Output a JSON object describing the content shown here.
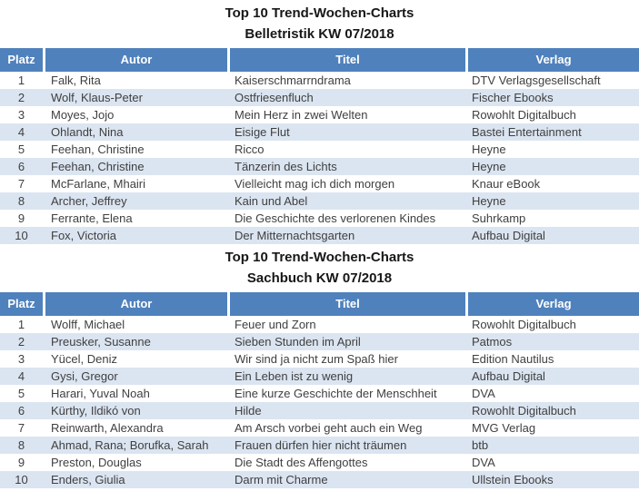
{
  "colors": {
    "header_bg": "#4f81bd",
    "row_alt": "#dbe5f1",
    "header_text": "#ffffff",
    "body_text": "#3f3f3f"
  },
  "tables": [
    {
      "title_line1": "Top 10 Trend-Wochen-Charts",
      "title_line2": "Belletristik KW 07/2018",
      "columns": [
        "Platz",
        "Autor",
        "Titel",
        "Verlag"
      ],
      "rows": [
        {
          "platz": "1",
          "autor": "Falk, Rita",
          "titel": "Kaiserschmarrndrama",
          "verlag": "DTV Verlagsgesellschaft"
        },
        {
          "platz": "2",
          "autor": "Wolf, Klaus-Peter",
          "titel": "Ostfriesenfluch",
          "verlag": "Fischer Ebooks"
        },
        {
          "platz": "3",
          "autor": "Moyes, Jojo",
          "titel": "Mein Herz in zwei Welten",
          "verlag": "Rowohlt Digitalbuch"
        },
        {
          "platz": "4",
          "autor": "Ohlandt, Nina",
          "titel": "Eisige Flut",
          "verlag": "Bastei Entertainment"
        },
        {
          "platz": "5",
          "autor": "Feehan, Christine",
          "titel": "Ricco",
          "verlag": "Heyne"
        },
        {
          "platz": "6",
          "autor": "Feehan, Christine",
          "titel": "Tänzerin des Lichts",
          "verlag": "Heyne"
        },
        {
          "platz": "7",
          "autor": "McFarlane, Mhairi",
          "titel": "Vielleicht mag ich dich morgen",
          "verlag": "Knaur eBook"
        },
        {
          "platz": "8",
          "autor": "Archer, Jeffrey",
          "titel": "Kain und Abel",
          "verlag": "Heyne"
        },
        {
          "platz": "9",
          "autor": "Ferrante, Elena",
          "titel": "Die Geschichte des verlorenen Kindes",
          "verlag": "Suhrkamp"
        },
        {
          "platz": "10",
          "autor": "Fox, Victoria",
          "titel": "Der Mitternachtsgarten",
          "verlag": "Aufbau Digital"
        }
      ]
    },
    {
      "title_line1": "Top 10 Trend-Wochen-Charts",
      "title_line2": "Sachbuch KW 07/2018",
      "columns": [
        "Platz",
        "Autor",
        "Titel",
        "Verlag"
      ],
      "rows": [
        {
          "platz": "1",
          "autor": "Wolff, Michael",
          "titel": "Feuer und Zorn",
          "verlag": "Rowohlt Digitalbuch"
        },
        {
          "platz": "2",
          "autor": "Preusker, Susanne",
          "titel": "Sieben Stunden im April",
          "verlag": "Patmos"
        },
        {
          "platz": "3",
          "autor": "Yücel, Deniz",
          "titel": "Wir sind ja nicht zum Spaß hier",
          "verlag": "Edition Nautilus"
        },
        {
          "platz": "4",
          "autor": "Gysi, Gregor",
          "titel": "Ein Leben ist zu wenig",
          "verlag": "Aufbau Digital"
        },
        {
          "platz": "5",
          "autor": "Harari, Yuval Noah",
          "titel": "Eine kurze Geschichte der Menschheit",
          "verlag": "DVA"
        },
        {
          "platz": "6",
          "autor": "Kürthy, Ildikó von",
          "titel": "Hilde",
          "verlag": "Rowohlt Digitalbuch"
        },
        {
          "platz": "7",
          "autor": "Reinwarth, Alexandra",
          "titel": "Am Arsch vorbei geht auch ein Weg",
          "verlag": "MVG Verlag"
        },
        {
          "platz": "8",
          "autor": "Ahmad, Rana; Borufka, Sarah",
          "titel": "Frauen dürfen hier nicht träumen",
          "verlag": "btb"
        },
        {
          "platz": "9",
          "autor": "Preston, Douglas",
          "titel": "Die Stadt des Affengottes",
          "verlag": "DVA"
        },
        {
          "platz": "10",
          "autor": "Enders, Giulia",
          "titel": "Darm mit Charme",
          "verlag": "Ullstein Ebooks"
        }
      ]
    }
  ]
}
